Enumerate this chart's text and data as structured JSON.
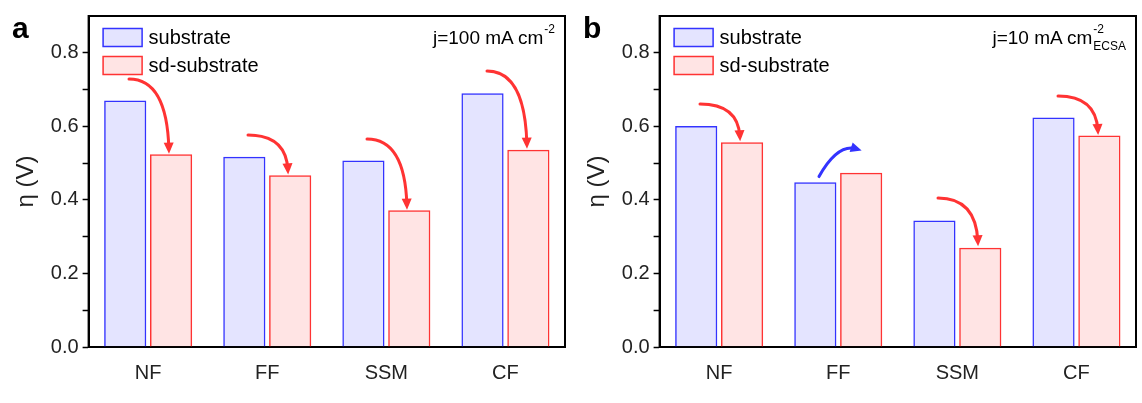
{
  "chart_data": [
    {
      "type": "bar",
      "title": "a",
      "ylabel": "η (V)",
      "annotations": [
        "j=100 mA cm$^{-2}$"
      ],
      "categories": [
        "NF",
        "FF",
        "SSM",
        "CF"
      ],
      "series": [
        {
          "name": "substrate",
          "color": "#3333ff",
          "values": [
            0.67,
            0.517,
            0.507,
            0.69
          ]
        },
        {
          "name": "sd-substrate",
          "color": "#ff3333",
          "values": [
            0.524,
            0.467,
            0.372,
            0.536
          ]
        }
      ],
      "ylim": [
        0,
        0.9
      ],
      "yticks": [
        {
          "value": 0,
          "label": "0.0"
        },
        {
          "value": 0.1,
          "label": null
        },
        {
          "value": 0.2,
          "label": "0.2"
        },
        {
          "value": 0.3,
          "label": null
        },
        {
          "value": 0.4,
          "label": "0.4"
        },
        {
          "value": 0.5,
          "label": null
        },
        {
          "value": 0.6,
          "label": "0.6"
        },
        {
          "value": 0.7,
          "label": null
        },
        {
          "value": 0.8,
          "label": "0.8"
        }
      ],
      "grid": false,
      "legend": "top left"
    },
    {
      "type": "bar",
      "title": "b",
      "ylabel": "η (V)",
      "annotations": [
        "j=10 mA cm$^{-2}$$_{ECSA}$"
      ],
      "categories": [
        "NF",
        "FF",
        "SSM",
        "CF"
      ],
      "series": [
        {
          "name": "substrate",
          "color": "#3333ff",
          "values": [
            0.601,
            0.448,
            0.344,
            0.624
          ]
        },
        {
          "name": "sd-substrate",
          "color": "#ff3333",
          "values": [
            0.557,
            0.474,
            0.27,
            0.575
          ]
        }
      ],
      "ylim": [
        0,
        0.9
      ],
      "yticks": [
        {
          "value": 0,
          "label": "0.0"
        },
        {
          "value": 0.1,
          "label": null
        },
        {
          "value": 0.2,
          "label": "0.2"
        },
        {
          "value": 0.3,
          "label": null
        },
        {
          "value": 0.4,
          "label": "0.4"
        },
        {
          "value": 0.5,
          "label": null
        },
        {
          "value": 0.6,
          "label": "0.6"
        },
        {
          "value": 0.7,
          "label": null
        },
        {
          "value": 0.8,
          "label": "0.8"
        }
      ],
      "grid": false,
      "legend": "top left"
    }
  ]
}
